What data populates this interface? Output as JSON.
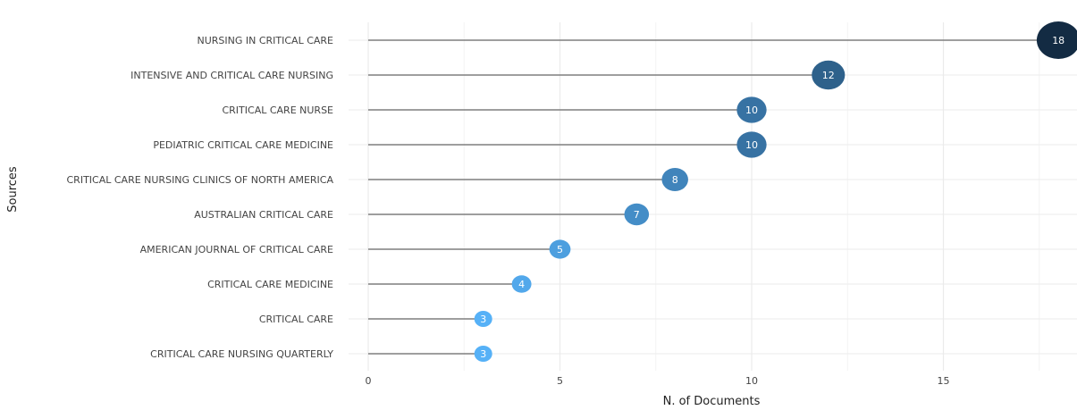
{
  "chart_data": {
    "type": "lollipop",
    "title": "",
    "xlabel": "N. of Documents",
    "ylabel": "Sources",
    "xlim": [
      0,
      18.5
    ],
    "xticks": [
      0,
      5,
      10,
      15
    ],
    "grid": true,
    "legend": "none",
    "categories": [
      "NURSING IN CRITICAL CARE",
      "INTENSIVE AND CRITICAL CARE NURSING",
      "CRITICAL CARE NURSE",
      "PEDIATRIC CRITICAL CARE MEDICINE",
      "CRITICAL CARE NURSING CLINICS OF NORTH AMERICA",
      "AUSTRALIAN CRITICAL CARE",
      "AMERICAN JOURNAL OF CRITICAL CARE",
      "CRITICAL CARE MEDICINE",
      "CRITICAL CARE",
      "CRITICAL CARE NURSING QUARTERLY"
    ],
    "values": [
      18,
      12,
      10,
      10,
      8,
      7,
      5,
      4,
      3,
      3
    ],
    "value_labels": [
      "18",
      "12",
      "10",
      "10",
      "8",
      "7",
      "5",
      "4",
      "3",
      "3"
    ],
    "colors": {
      "low": "#56b1f7",
      "high": "#132b43",
      "stem": "#7f7f7f",
      "grid": "#ebebeb"
    }
  }
}
